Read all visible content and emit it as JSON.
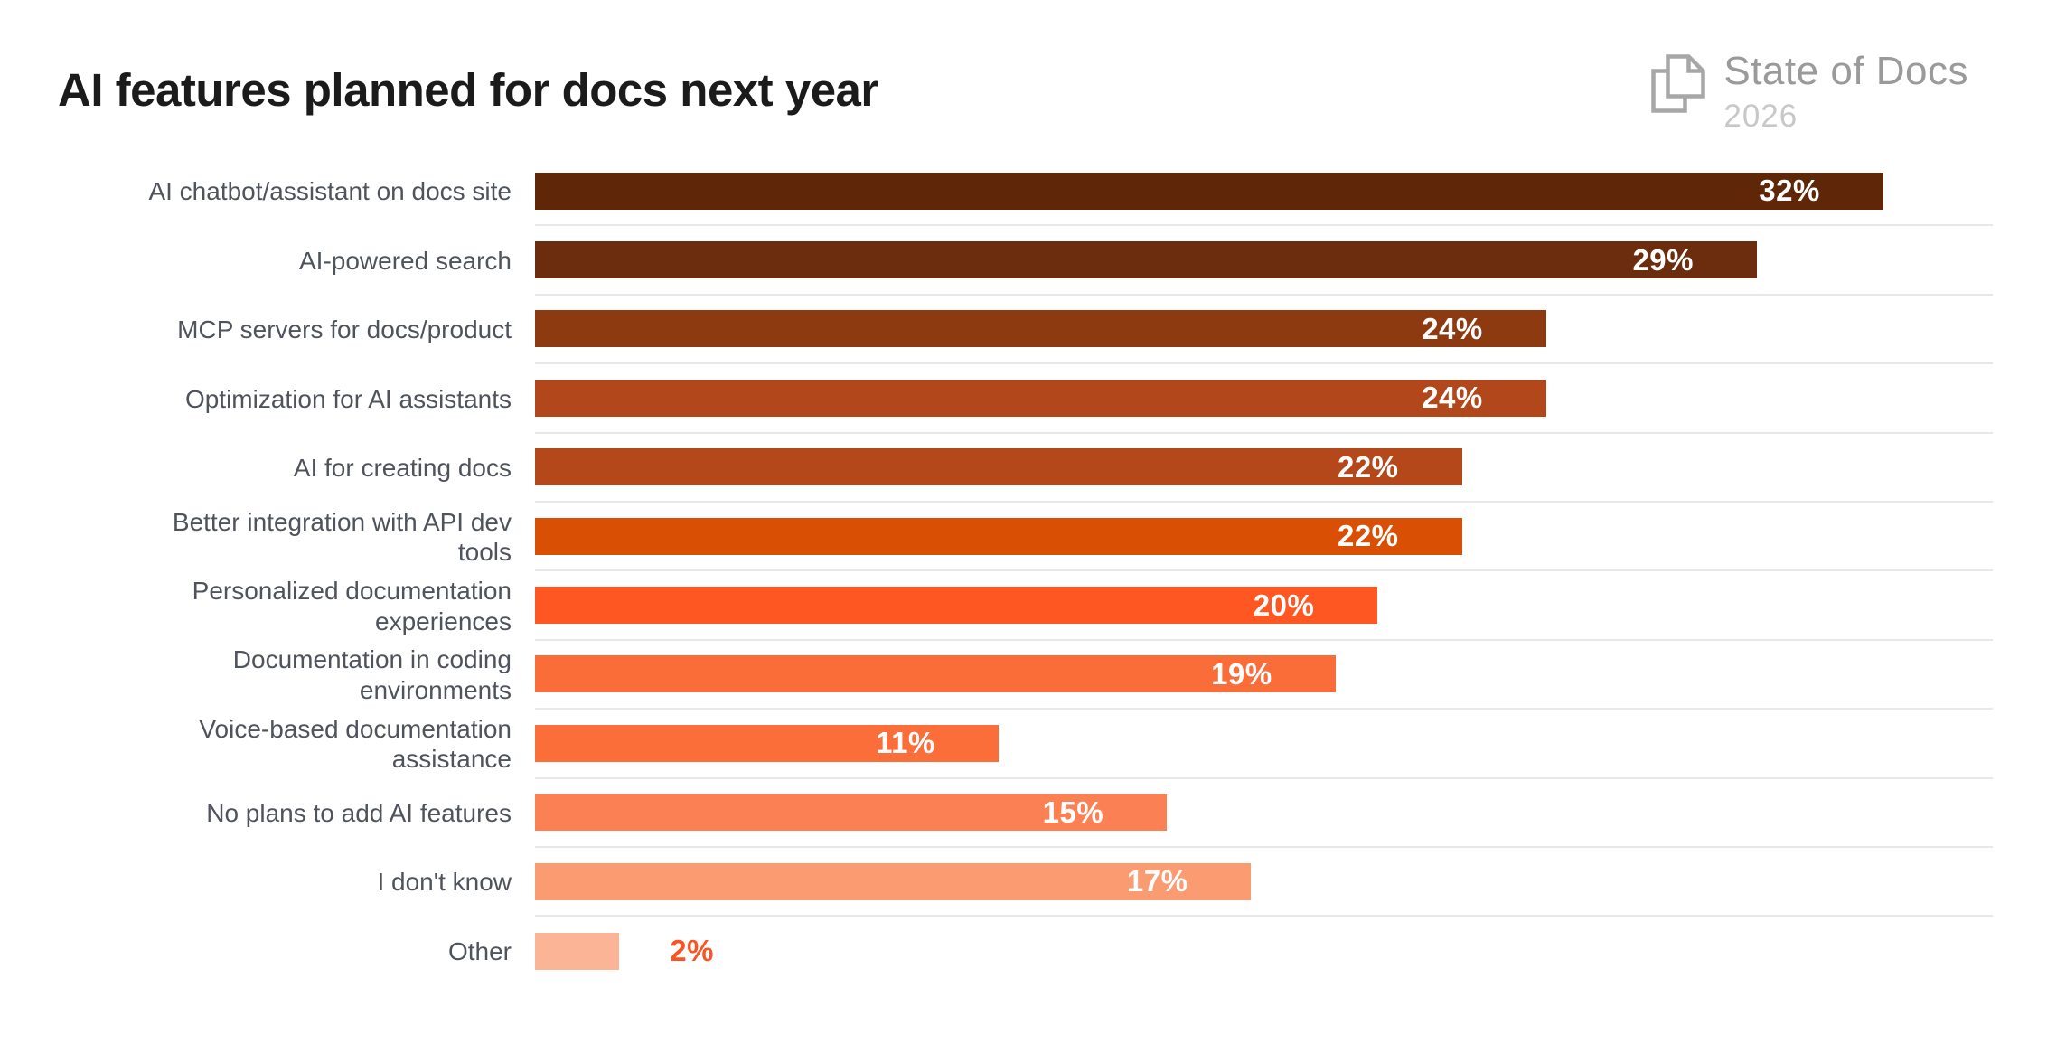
{
  "header": {
    "title": "AI features planned for docs next year",
    "logo": {
      "name": "State of Docs",
      "year": "2026",
      "icon": "document-pages-icon"
    }
  },
  "colors": {
    "background": "#ffffff",
    "title_text": "#1b1b1b",
    "category_label_text": "#4f545c",
    "value_label_inside": "#ffffff",
    "value_label_outside": "#f95423",
    "row_separator": "#e8e8e8",
    "logo_text": "#9a9a9a",
    "logo_year": "#c8c8c8"
  },
  "chart_data": {
    "type": "bar",
    "orientation": "horizontal",
    "title": "AI features planned for docs next year",
    "xlabel": "",
    "ylabel": "",
    "xlim": [
      0,
      34.6
    ],
    "grid": "light horizontal separators between rows, plot area only",
    "legend": "none",
    "value_suffix": "%",
    "items": [
      {
        "label": "AI chatbot/assistant on docs site",
        "value": 32,
        "display_value": "32%",
        "color": "#5f2708",
        "label_position": "inside"
      },
      {
        "label": "AI-powered search",
        "value": 29,
        "display_value": "29%",
        "color": "#6b2d0d",
        "label_position": "inside"
      },
      {
        "label": "MCP servers for docs/product",
        "value": 24,
        "display_value": "24%",
        "color": "#8e3a11",
        "label_position": "inside"
      },
      {
        "label": "Optimization for AI assistants",
        "value": 24,
        "display_value": "24%",
        "color": "#b1471a",
        "label_position": "inside"
      },
      {
        "label": "AI for creating docs",
        "value": 22,
        "display_value": "22%",
        "color": "#b4481a",
        "label_position": "inside"
      },
      {
        "label": "Better integration with API dev\ntools",
        "value": 22,
        "display_value": "22%",
        "color": "#d94f04",
        "label_position": "inside"
      },
      {
        "label": "Personalized documentation\nexperiences",
        "value": 20,
        "display_value": "20%",
        "color": "#fe5722",
        "label_position": "inside"
      },
      {
        "label": "Documentation in coding\nenvironments",
        "value": 19,
        "display_value": "19%",
        "color": "#fb6d38",
        "label_position": "inside"
      },
      {
        "label": "Voice-based documentation\nassistance",
        "value": 11,
        "display_value": "11%",
        "color": "#fb6e3a",
        "label_position": "inside"
      },
      {
        "label": "No plans to add AI features",
        "value": 15,
        "display_value": "15%",
        "color": "#fb8053",
        "label_position": "inside"
      },
      {
        "label": "I don't know",
        "value": 17,
        "display_value": "17%",
        "color": "#fa9b71",
        "label_position": "inside"
      },
      {
        "label": "Other",
        "value": 2,
        "display_value": "2%",
        "color": "#fbb495",
        "label_position": "outside"
      }
    ]
  }
}
